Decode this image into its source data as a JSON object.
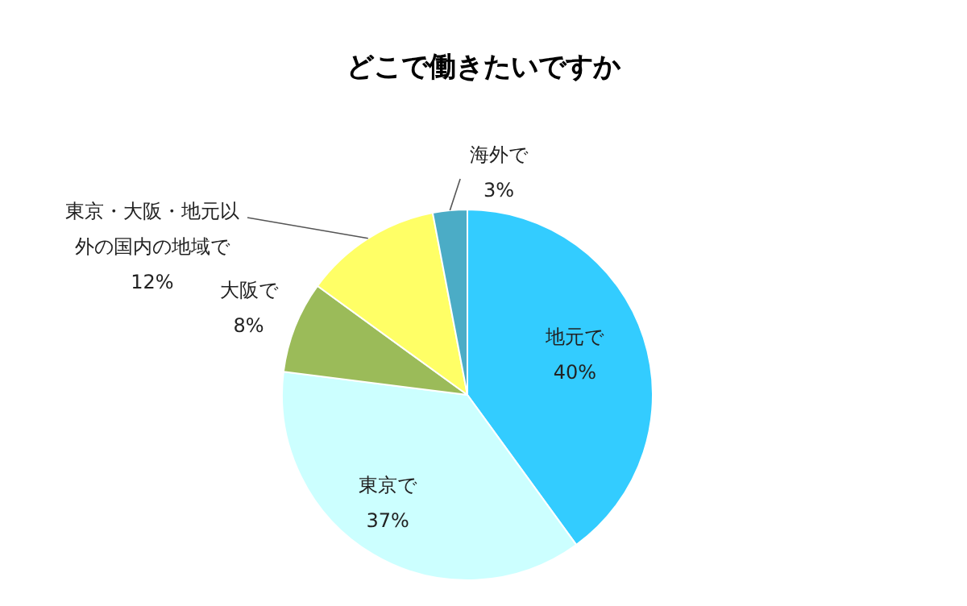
{
  "chart_data": {
    "type": "pie",
    "title": "どこで働きたいですか",
    "categories": [
      "地元で",
      "東京で",
      "大阪で",
      "東京・大阪・地元以外の国内の地域で",
      "海外で"
    ],
    "values": [
      40,
      37,
      8,
      12,
      3
    ],
    "colors": [
      "#33ccff",
      "#ccffff",
      "#9bbb59",
      "#ffff66",
      "#4bacc6"
    ],
    "value_labels": [
      "40%",
      "37%",
      "8%",
      "12%",
      "3%"
    ]
  }
}
